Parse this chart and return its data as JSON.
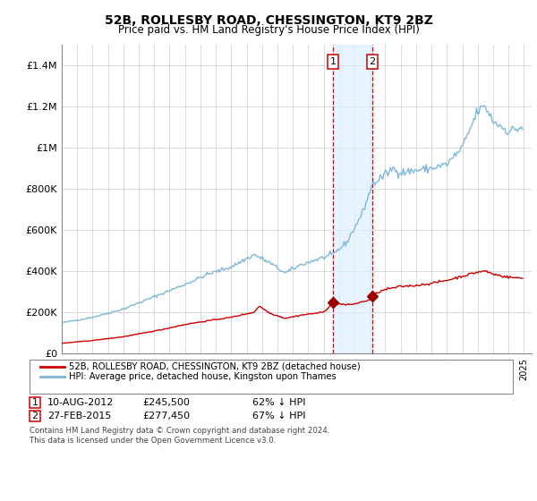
{
  "title": "52B, ROLLESBY ROAD, CHESSINGTON, KT9 2BZ",
  "subtitle": "Price paid vs. HM Land Registry's House Price Index (HPI)",
  "legend_line1": "52B, ROLLESBY ROAD, CHESSINGTON, KT9 2BZ (detached house)",
  "legend_line2": "HPI: Average price, detached house, Kingston upon Thames",
  "footnote": "Contains HM Land Registry data © Crown copyright and database right 2024.\nThis data is licensed under the Open Government Licence v3.0.",
  "sale1_date": "10-AUG-2012",
  "sale1_price": "£245,500",
  "sale1_pct": "62% ↓ HPI",
  "sale2_date": "27-FEB-2015",
  "sale2_price": "£277,450",
  "sale2_pct": "67% ↓ HPI",
  "hpi_color": "#7db8d8",
  "price_color": "#cc0000",
  "sale_marker_color": "#990000",
  "vline_color": "#cc0000",
  "vshade_color": "#ddeeff",
  "ylim": [
    0,
    1500000
  ],
  "yticks": [
    0,
    200000,
    400000,
    600000,
    800000,
    1000000,
    1200000,
    1400000
  ],
  "ytick_labels": [
    "£0",
    "£200K",
    "£400K",
    "£600K",
    "£800K",
    "£1M",
    "£1.2M",
    "£1.4M"
  ],
  "sale1_x": 2012.6,
  "sale1_y": 245500,
  "sale2_x": 2015.15,
  "sale2_y": 277450,
  "vline1_x": 2012.6,
  "vline2_x": 2015.15,
  "shade_x1": 2012.6,
  "shade_x2": 2015.15,
  "xlim_left": 1995,
  "xlim_right": 2025.5
}
